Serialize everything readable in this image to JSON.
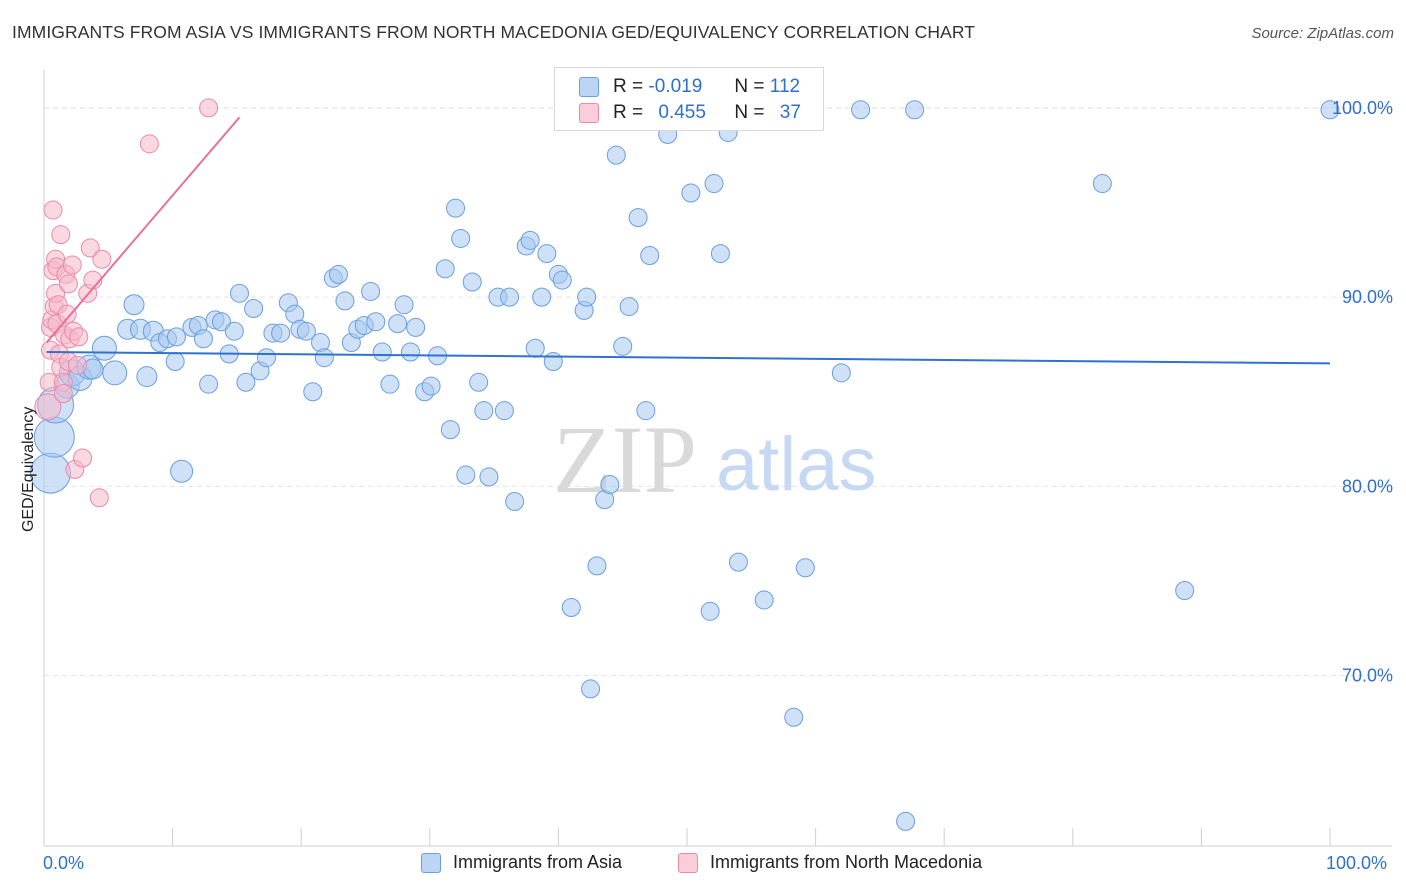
{
  "title": "IMMIGRANTS FROM ASIA VS IMMIGRANTS FROM NORTH MACEDONIA GED/EQUIVALENCY CORRELATION CHART",
  "source": "Source: ZipAtlas.com",
  "watermark": {
    "zip": "ZIP",
    "atlas": "atlas"
  },
  "legend": {
    "r_label": "R =",
    "n_label": "N =",
    "rows": [
      {
        "r": "-0.019",
        "n": "112",
        "color": "#a8c8f0"
      },
      {
        "r": "0.455",
        "n": "37",
        "color": "#f6b8cb"
      }
    ]
  },
  "bottom_legend": [
    {
      "label": "Immigrants from Asia",
      "color": "#a8c8f0"
    },
    {
      "label": "Immigrants from North Macedonia",
      "color": "#f6b8cb"
    }
  ],
  "colors": {
    "asia_fill": "rgba(168,200,240,0.55)",
    "asia_stroke": "#6a9ee0",
    "asia_line": "#2f72d0",
    "mac_fill": "rgba(246,184,203,0.55)",
    "mac_stroke": "#e98aaa",
    "mac_line": "#e8709a",
    "axis_text": "#2f6fce",
    "grid": "#e3e3e3"
  },
  "chart_data": {
    "type": "scatter",
    "title": "IMMIGRANTS FROM ASIA VS IMMIGRANTS FROM NORTH MACEDONIA GED/EQUIVALENCY CORRELATION CHART",
    "xlabel": "",
    "ylabel": "GED/Equivalency",
    "xlim": [
      0,
      100
    ],
    "ylim": [
      61,
      102
    ],
    "x_tick_labels": [
      "0.0%",
      "100.0%"
    ],
    "y_tick_labels": [
      "70.0%",
      "80.0%",
      "90.0%",
      "100.0%"
    ],
    "y_ticks": [
      70,
      80,
      90,
      100
    ],
    "grid": true,
    "legend_position": "top-center",
    "series": [
      {
        "name": "Immigrants from Asia",
        "r": -0.019,
        "n": 112,
        "trend": [
          [
            0.2,
            87.1
          ],
          [
            100,
            86.5
          ]
        ],
        "points": [
          [
            0.5,
            80.7,
            20
          ],
          [
            0.8,
            82.6,
            20
          ],
          [
            0.9,
            84.3,
            18
          ],
          [
            1.8,
            85.3,
            12
          ],
          [
            2.2,
            86.0,
            13
          ],
          [
            2.8,
            85.7,
            12
          ],
          [
            3.5,
            86.3,
            12
          ],
          [
            4.7,
            87.3,
            12
          ],
          [
            5.5,
            86.0,
            12
          ],
          [
            3.8,
            86.2,
            10
          ],
          [
            6.5,
            88.3,
            10
          ],
          [
            7.0,
            89.6,
            10
          ],
          [
            7.5,
            88.3,
            10
          ],
          [
            8.0,
            85.8,
            10
          ],
          [
            8.5,
            88.2,
            10
          ],
          [
            9.0,
            87.6,
            9
          ],
          [
            9.6,
            87.8,
            9
          ],
          [
            10.2,
            86.6,
            9
          ],
          [
            10.3,
            87.9,
            9
          ],
          [
            10.7,
            80.8,
            11
          ],
          [
            11.5,
            88.4,
            9
          ],
          [
            12.0,
            88.5,
            9
          ],
          [
            12.4,
            87.8,
            9
          ],
          [
            12.8,
            85.4,
            9
          ],
          [
            13.3,
            88.8,
            9
          ],
          [
            13.8,
            88.7,
            9
          ],
          [
            14.4,
            87.0,
            9
          ],
          [
            14.8,
            88.2,
            9
          ],
          [
            15.2,
            90.2,
            9
          ],
          [
            15.7,
            85.5,
            9
          ],
          [
            16.3,
            89.4,
            9
          ],
          [
            16.8,
            86.1,
            9
          ],
          [
            17.3,
            86.8,
            9
          ],
          [
            17.8,
            88.1,
            9
          ],
          [
            18.4,
            88.1,
            9
          ],
          [
            19.0,
            89.7,
            9
          ],
          [
            19.5,
            89.1,
            9
          ],
          [
            19.9,
            88.3,
            9
          ],
          [
            20.4,
            88.2,
            9
          ],
          [
            20.9,
            85.0,
            9
          ],
          [
            21.5,
            87.6,
            9
          ],
          [
            21.8,
            86.8,
            9
          ],
          [
            22.5,
            91.0,
            9
          ],
          [
            22.9,
            91.2,
            9
          ],
          [
            23.4,
            89.8,
            9
          ],
          [
            23.9,
            87.6,
            9
          ],
          [
            24.4,
            88.3,
            9
          ],
          [
            24.9,
            88.5,
            9
          ],
          [
            25.4,
            90.3,
            9
          ],
          [
            25.8,
            88.7,
            9
          ],
          [
            26.3,
            87.1,
            9
          ],
          [
            26.9,
            85.4,
            9
          ],
          [
            27.5,
            88.6,
            9
          ],
          [
            28.0,
            89.6,
            9
          ],
          [
            28.5,
            87.1,
            9
          ],
          [
            28.9,
            88.4,
            9
          ],
          [
            29.6,
            85.0,
            9
          ],
          [
            30.1,
            85.3,
            9
          ],
          [
            30.6,
            86.9,
            9
          ],
          [
            31.2,
            91.5,
            9
          ],
          [
            31.6,
            83.0,
            9
          ],
          [
            32.0,
            94.7,
            9
          ],
          [
            32.4,
            93.1,
            9
          ],
          [
            32.8,
            80.6,
            9
          ],
          [
            33.3,
            90.8,
            9
          ],
          [
            33.8,
            85.5,
            9
          ],
          [
            34.2,
            84.0,
            9
          ],
          [
            34.6,
            80.5,
            9
          ],
          [
            35.3,
            90.0,
            9
          ],
          [
            35.8,
            84.0,
            9
          ],
          [
            36.2,
            90.0,
            9
          ],
          [
            36.6,
            79.2,
            9
          ],
          [
            37.5,
            92.7,
            9
          ],
          [
            37.8,
            93.0,
            9
          ],
          [
            38.2,
            87.3,
            9
          ],
          [
            38.7,
            90.0,
            9
          ],
          [
            39.1,
            92.3,
            9
          ],
          [
            39.6,
            86.6,
            9
          ],
          [
            40.0,
            91.2,
            9
          ],
          [
            40.3,
            90.9,
            9
          ],
          [
            41.0,
            73.6,
            9
          ],
          [
            42.0,
            89.3,
            9
          ],
          [
            42.2,
            90.0,
            9
          ],
          [
            42.5,
            69.3,
            9
          ],
          [
            43.0,
            75.8,
            9
          ],
          [
            43.6,
            79.3,
            9
          ],
          [
            44.0,
            80.1,
            9
          ],
          [
            44.5,
            97.5,
            9
          ],
          [
            45.0,
            87.4,
            9
          ],
          [
            45.5,
            89.5,
            9
          ],
          [
            46.2,
            94.2,
            9
          ],
          [
            46.8,
            84.0,
            9
          ],
          [
            47.1,
            92.2,
            9
          ],
          [
            48.5,
            98.6,
            9
          ],
          [
            50.3,
            95.5,
            9
          ],
          [
            51.8,
            73.4,
            9
          ],
          [
            52.1,
            96.0,
            9
          ],
          [
            52.6,
            92.3,
            9
          ],
          [
            53.2,
            98.7,
            9
          ],
          [
            54.0,
            76.0,
            9
          ],
          [
            56.0,
            74.0,
            9
          ],
          [
            58.3,
            67.8,
            9
          ],
          [
            59.2,
            75.7,
            9
          ],
          [
            62.0,
            86.0,
            9
          ],
          [
            63.5,
            99.9,
            9
          ],
          [
            67.0,
            62.3,
            9
          ],
          [
            67.7,
            99.9,
            9
          ],
          [
            82.3,
            96.0,
            9
          ],
          [
            88.7,
            74.5,
            9
          ],
          [
            100.0,
            99.9,
            9
          ]
        ]
      },
      {
        "name": "Immigrants from North Macedonia",
        "r": 0.455,
        "n": 37,
        "trend": [
          [
            0.2,
            87.6
          ],
          [
            15.2,
            99.5
          ]
        ],
        "points": [
          [
            0.3,
            84.2,
            13
          ],
          [
            0.4,
            85.5,
            9
          ],
          [
            0.5,
            87.2,
            9
          ],
          [
            0.5,
            88.4,
            9
          ],
          [
            0.6,
            88.8,
            9
          ],
          [
            0.7,
            91.4,
            9
          ],
          [
            0.7,
            94.6,
            9
          ],
          [
            0.8,
            89.5,
            9
          ],
          [
            0.9,
            90.2,
            9
          ],
          [
            0.9,
            92.0,
            9
          ],
          [
            1.0,
            91.6,
            9
          ],
          [
            1.0,
            88.6,
            9
          ],
          [
            1.1,
            89.6,
            9
          ],
          [
            1.2,
            87.0,
            9
          ],
          [
            1.3,
            86.3,
            9
          ],
          [
            1.3,
            93.3,
            9
          ],
          [
            1.5,
            85.5,
            9
          ],
          [
            1.5,
            84.9,
            9
          ],
          [
            1.6,
            88.0,
            9
          ],
          [
            1.7,
            91.2,
            9
          ],
          [
            1.8,
            89.1,
            9
          ],
          [
            1.9,
            86.6,
            9
          ],
          [
            1.9,
            90.7,
            9
          ],
          [
            2.0,
            87.8,
            9
          ],
          [
            2.2,
            91.7,
            9
          ],
          [
            2.3,
            88.2,
            9
          ],
          [
            2.4,
            80.9,
            9
          ],
          [
            2.6,
            86.4,
            9
          ],
          [
            2.7,
            87.9,
            9
          ],
          [
            3.0,
            81.5,
            9
          ],
          [
            3.4,
            90.2,
            9
          ],
          [
            3.6,
            92.6,
            9
          ],
          [
            3.8,
            90.9,
            9
          ],
          [
            4.3,
            79.4,
            9
          ],
          [
            4.5,
            92.0,
            9
          ],
          [
            8.2,
            98.1,
            9
          ],
          [
            12.8,
            100.0,
            9
          ]
        ]
      }
    ]
  }
}
